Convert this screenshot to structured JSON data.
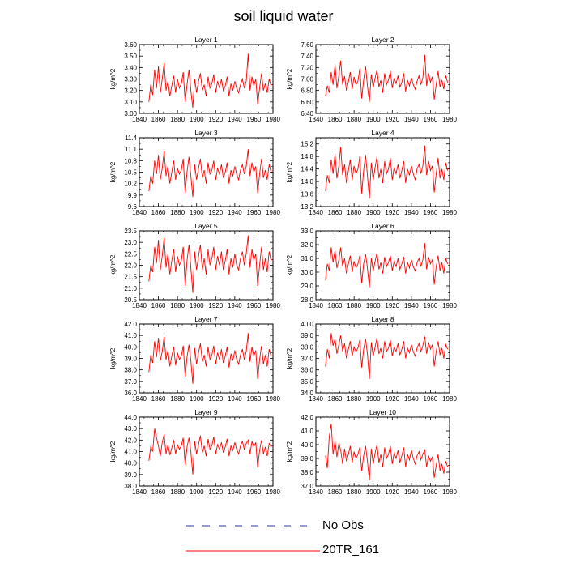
{
  "title": "soil liquid water",
  "legend": [
    {
      "label": "No Obs",
      "style": "dashed",
      "color": "#3030a0"
    },
    {
      "label": "20TR_161",
      "style": "solid",
      "color": "#ff0000"
    }
  ],
  "chart_data": [
    {
      "type": "line",
      "title": "Layer 1",
      "ylabel": "kg/m^2",
      "xlim": [
        1840,
        1980
      ],
      "ylim": [
        3.0,
        3.6
      ],
      "xticks": [
        "1840",
        "1860",
        "1880",
        "1900",
        "1920",
        "1940",
        "1960",
        "1980"
      ],
      "yticks": [
        "3.00",
        "3.10",
        "3.20",
        "3.30",
        "3.40",
        "3.50",
        "3.60"
      ],
      "x_start": 1850,
      "x_step": 2,
      "series": [
        {
          "color": "#ff0000",
          "values": [
            3.1,
            3.25,
            3.16,
            3.38,
            3.22,
            3.41,
            3.18,
            3.3,
            3.44,
            3.2,
            3.28,
            3.15,
            3.24,
            3.33,
            3.18,
            3.3,
            3.22,
            3.26,
            3.36,
            3.1,
            3.25,
            3.38,
            3.2,
            3.05,
            3.3,
            3.18,
            3.28,
            3.35,
            3.2,
            3.25,
            3.15,
            3.32,
            3.22,
            3.26,
            3.34,
            3.18,
            3.28,
            3.22,
            3.3,
            3.2,
            3.24,
            3.32,
            3.15,
            3.26,
            3.2,
            3.28,
            3.22,
            3.18,
            3.25,
            3.3,
            3.22,
            3.28,
            3.52,
            3.2,
            3.32,
            3.24,
            3.3,
            3.08,
            3.22,
            3.35,
            3.2,
            3.26,
            3.18,
            3.3,
            3.24
          ]
        }
      ]
    },
    {
      "type": "line",
      "title": "Layer 2",
      "ylabel": "kg/m^2",
      "xlim": [
        1840,
        1980
      ],
      "ylim": [
        6.4,
        7.6
      ],
      "xticks": [
        "1840",
        "1860",
        "1880",
        "1900",
        "1920",
        "1940",
        "1960",
        "1980"
      ],
      "yticks": [
        "6.40",
        "6.60",
        "6.80",
        "7.00",
        "7.20",
        "7.40",
        "7.60"
      ],
      "x_start": 1850,
      "x_step": 2,
      "series": [
        {
          "color": "#ff0000",
          "values": [
            6.7,
            6.88,
            6.76,
            7.12,
            6.9,
            7.25,
            6.84,
            7.06,
            7.32,
            6.9,
            7.05,
            6.8,
            6.95,
            7.12,
            6.82,
            7.04,
            6.9,
            6.96,
            7.18,
            6.66,
            6.98,
            7.22,
            6.88,
            6.6,
            7.08,
            6.85,
            7.02,
            7.16,
            6.86,
            6.98,
            6.76,
            7.1,
            6.9,
            6.98,
            7.14,
            6.84,
            7.02,
            6.92,
            7.06,
            6.86,
            6.94,
            7.1,
            6.78,
            6.98,
            6.88,
            7.02,
            6.9,
            6.82,
            6.96,
            7.06,
            6.9,
            7.02,
            7.42,
            6.88,
            7.1,
            6.94,
            7.04,
            6.64,
            6.9,
            7.14,
            6.86,
            6.98,
            6.82,
            7.06,
            6.94
          ]
        }
      ]
    },
    {
      "type": "line",
      "title": "Layer 3",
      "ylabel": "kg/m^2",
      "xlim": [
        1840,
        1980
      ],
      "ylim": [
        9.6,
        11.4
      ],
      "xticks": [
        "1840",
        "1860",
        "1880",
        "1900",
        "1920",
        "1940",
        "1960",
        "1980"
      ],
      "yticks": [
        "9.6",
        "9.9",
        "10.2",
        "10.5",
        "10.8",
        "11.1",
        "11.4"
      ],
      "x_start": 1850,
      "x_step": 2,
      "series": [
        {
          "color": "#ff0000",
          "values": [
            10.0,
            10.4,
            10.2,
            10.8,
            10.45,
            10.95,
            10.3,
            10.6,
            11.05,
            10.4,
            10.65,
            10.2,
            10.5,
            10.8,
            10.3,
            10.6,
            10.45,
            10.55,
            10.85,
            9.95,
            10.5,
            10.9,
            10.4,
            9.85,
            10.7,
            10.3,
            10.6,
            10.85,
            10.35,
            10.55,
            10.2,
            10.75,
            10.45,
            10.55,
            10.8,
            10.3,
            10.6,
            10.45,
            10.7,
            10.35,
            10.5,
            10.75,
            10.2,
            10.55,
            10.4,
            10.65,
            10.45,
            10.3,
            10.55,
            10.7,
            10.45,
            10.65,
            11.1,
            10.4,
            10.75,
            10.5,
            10.65,
            9.95,
            10.45,
            10.85,
            10.35,
            10.55,
            10.3,
            10.7,
            10.5
          ]
        }
      ]
    },
    {
      "type": "line",
      "title": "Layer 4",
      "ylabel": "kg/m^2",
      "xlim": [
        1840,
        1980
      ],
      "ylim": [
        13.2,
        15.4
      ],
      "xticks": [
        "1840",
        "1860",
        "1880",
        "1900",
        "1920",
        "1940",
        "1960",
        "1980"
      ],
      "yticks": [
        "13.2",
        "13.6",
        "14.0",
        "14.4",
        "14.8",
        "15.2"
      ],
      "x_start": 1850,
      "x_step": 2,
      "series": [
        {
          "color": "#ff0000",
          "values": [
            13.7,
            14.2,
            13.95,
            14.7,
            14.25,
            14.9,
            14.1,
            14.5,
            15.1,
            14.2,
            14.55,
            13.95,
            14.35,
            14.7,
            14.05,
            14.5,
            14.25,
            14.4,
            14.8,
            13.6,
            14.35,
            14.85,
            14.2,
            13.45,
            14.6,
            14.05,
            14.45,
            14.8,
            14.1,
            14.4,
            13.95,
            14.65,
            14.25,
            14.4,
            14.75,
            14.05,
            14.45,
            14.25,
            14.55,
            14.1,
            14.35,
            14.65,
            13.95,
            14.4,
            14.2,
            14.5,
            14.25,
            14.05,
            14.4,
            14.55,
            14.25,
            14.5,
            15.15,
            14.2,
            14.65,
            14.35,
            14.5,
            13.65,
            14.25,
            14.75,
            14.1,
            14.4,
            14.05,
            14.6,
            14.35
          ]
        }
      ]
    },
    {
      "type": "line",
      "title": "Layer 5",
      "ylabel": "kg/m^2",
      "xlim": [
        1840,
        1980
      ],
      "ylim": [
        20.5,
        23.5
      ],
      "xticks": [
        "1840",
        "1860",
        "1880",
        "1900",
        "1920",
        "1940",
        "1960",
        "1980"
      ],
      "yticks": [
        "20.5",
        "21.0",
        "21.5",
        "22.0",
        "22.5",
        "23.0",
        "23.5"
      ],
      "x_start": 1850,
      "x_step": 2,
      "series": [
        {
          "color": "#ff0000",
          "values": [
            21.3,
            22.0,
            21.7,
            22.8,
            22.1,
            23.1,
            21.8,
            22.4,
            23.2,
            21.9,
            22.5,
            21.6,
            22.2,
            22.7,
            21.7,
            22.4,
            22.0,
            22.2,
            22.8,
            21.1,
            22.2,
            22.9,
            21.9,
            20.8,
            22.6,
            21.8,
            22.4,
            22.9,
            21.8,
            22.3,
            21.6,
            22.7,
            22.0,
            22.3,
            22.8,
            21.8,
            22.4,
            22.0,
            22.6,
            21.8,
            22.2,
            22.7,
            21.6,
            22.3,
            21.9,
            22.5,
            22.0,
            21.8,
            22.3,
            22.6,
            22.0,
            22.5,
            23.3,
            21.9,
            22.7,
            22.2,
            22.5,
            21.1,
            22.0,
            22.8,
            21.8,
            22.3,
            21.7,
            22.6,
            22.2
          ]
        }
      ]
    },
    {
      "type": "line",
      "title": "Layer 6",
      "ylabel": "kg/m^2",
      "xlim": [
        1840,
        1980
      ],
      "ylim": [
        28.0,
        33.0
      ],
      "xticks": [
        "1840",
        "1860",
        "1880",
        "1900",
        "1920",
        "1940",
        "1960",
        "1980"
      ],
      "yticks": [
        "28.0",
        "29.0",
        "30.0",
        "31.0",
        "32.0",
        "33.0"
      ],
      "x_start": 1850,
      "x_step": 2,
      "series": [
        {
          "color": "#ff0000",
          "values": [
            29.4,
            30.6,
            30.1,
            31.8,
            30.7,
            31.6,
            30.3,
            30.9,
            31.8,
            30.4,
            31.0,
            29.9,
            30.6,
            31.2,
            30.0,
            30.8,
            30.3,
            30.6,
            31.2,
            29.2,
            30.6,
            31.3,
            30.3,
            28.9,
            31.0,
            30.1,
            30.8,
            31.4,
            30.2,
            30.7,
            29.9,
            31.1,
            30.4,
            30.7,
            31.2,
            30.1,
            30.8,
            30.4,
            31.0,
            30.2,
            30.6,
            31.1,
            29.9,
            30.7,
            30.3,
            30.9,
            30.4,
            30.1,
            30.7,
            31.0,
            30.4,
            30.9,
            32.1,
            30.2,
            31.1,
            30.6,
            30.9,
            29.1,
            30.4,
            31.2,
            30.1,
            30.7,
            29.9,
            31.0,
            30.6
          ]
        }
      ]
    },
    {
      "type": "line",
      "title": "Layer 7",
      "ylabel": "kg/m^2",
      "xlim": [
        1840,
        1980
      ],
      "ylim": [
        36.0,
        42.0
      ],
      "xticks": [
        "1840",
        "1860",
        "1880",
        "1900",
        "1920",
        "1940",
        "1960",
        "1980"
      ],
      "yticks": [
        "36.0",
        "37.0",
        "38.0",
        "39.0",
        "40.0",
        "41.0",
        "42.0"
      ],
      "x_start": 1850,
      "x_step": 2,
      "series": [
        {
          "color": "#ff0000",
          "values": [
            37.8,
            39.3,
            38.6,
            40.5,
            39.1,
            40.8,
            38.8,
            39.6,
            40.9,
            38.9,
            39.7,
            38.3,
            39.2,
            40.0,
            38.4,
            39.5,
            38.9,
            39.2,
            40.1,
            37.4,
            39.1,
            40.2,
            38.8,
            36.8,
            39.9,
            38.5,
            39.5,
            40.3,
            38.7,
            39.3,
            38.3,
            40.0,
            38.9,
            39.3,
            40.1,
            38.5,
            39.5,
            38.9,
            39.8,
            38.6,
            39.2,
            40.0,
            38.2,
            39.4,
            38.8,
            39.7,
            38.9,
            38.5,
            39.3,
            39.8,
            38.9,
            39.6,
            41.2,
            38.7,
            40.0,
            39.2,
            39.7,
            37.2,
            38.9,
            40.1,
            38.5,
            39.3,
            38.3,
            39.8,
            39.2
          ]
        }
      ]
    },
    {
      "type": "line",
      "title": "Layer 8",
      "ylabel": "kg/m^2",
      "xlim": [
        1840,
        1980
      ],
      "ylim": [
        34.0,
        40.0
      ],
      "xticks": [
        "1840",
        "1860",
        "1880",
        "1900",
        "1920",
        "1940",
        "1960",
        "1980"
      ],
      "yticks": [
        "34.0",
        "35.0",
        "36.0",
        "37.0",
        "38.0",
        "39.0",
        "40.0"
      ],
      "x_start": 1850,
      "x_step": 2,
      "series": [
        {
          "color": "#ff0000",
          "values": [
            36.3,
            37.8,
            37.0,
            39.2,
            38.1,
            38.7,
            37.4,
            38.2,
            39.0,
            37.6,
            38.3,
            37.0,
            37.8,
            38.5,
            37.2,
            38.0,
            37.6,
            37.9,
            38.6,
            36.2,
            37.8,
            38.7,
            37.4,
            35.2,
            38.4,
            37.2,
            38.0,
            38.8,
            37.4,
            37.9,
            37.0,
            38.5,
            37.6,
            37.9,
            38.6,
            37.2,
            38.0,
            37.6,
            38.3,
            37.3,
            37.8,
            38.5,
            37.0,
            37.9,
            37.5,
            38.2,
            37.6,
            37.2,
            37.9,
            38.3,
            37.6,
            38.1,
            38.9,
            37.4,
            38.4,
            37.8,
            38.2,
            36.3,
            37.6,
            38.5,
            37.3,
            37.9,
            37.0,
            38.2,
            37.8
          ]
        }
      ]
    },
    {
      "type": "line",
      "title": "Layer 9",
      "ylabel": "kg/m^2",
      "xlim": [
        1840,
        1980
      ],
      "ylim": [
        38.0,
        44.0
      ],
      "xticks": [
        "1840",
        "1860",
        "1880",
        "1900",
        "1920",
        "1940",
        "1960",
        "1980"
      ],
      "yticks": [
        "38.0",
        "39.0",
        "40.0",
        "41.0",
        "42.0",
        "43.0",
        "44.0"
      ],
      "x_start": 1850,
      "x_step": 2,
      "series": [
        {
          "color": "#ff0000",
          "values": [
            40.2,
            41.4,
            41.0,
            43.0,
            42.2,
            41.5,
            40.6,
            41.8,
            42.5,
            40.8,
            41.6,
            40.7,
            41.3,
            42.0,
            40.8,
            41.6,
            41.2,
            41.5,
            42.2,
            39.8,
            41.4,
            42.2,
            41.0,
            39.0,
            41.9,
            40.8,
            41.6,
            42.4,
            40.9,
            41.5,
            40.6,
            42.1,
            41.2,
            41.5,
            42.3,
            40.8,
            41.6,
            41.2,
            41.8,
            40.9,
            41.4,
            42.1,
            40.6,
            41.5,
            41.1,
            41.8,
            41.2,
            40.8,
            41.5,
            41.9,
            41.2,
            41.7,
            42.0,
            40.8,
            41.9,
            41.4,
            41.8,
            39.6,
            41.1,
            42.0,
            40.8,
            41.4,
            40.6,
            41.7,
            41.4
          ]
        }
      ]
    },
    {
      "type": "line",
      "title": "Layer 10",
      "ylabel": "kg/m^2",
      "xlim": [
        1840,
        1980
      ],
      "ylim": [
        37.0,
        42.0
      ],
      "xticks": [
        "1840",
        "1860",
        "1880",
        "1900",
        "1920",
        "1940",
        "1960",
        "1980"
      ],
      "yticks": [
        "37.0",
        "38.0",
        "39.0",
        "40.0",
        "41.0",
        "42.0"
      ],
      "x_start": 1850,
      "x_step": 2,
      "series": [
        {
          "color": "#ff0000",
          "values": [
            39.2,
            38.3,
            40.6,
            41.5,
            39.3,
            40.3,
            39.1,
            40.1,
            39.6,
            38.6,
            39.7,
            38.8,
            39.3,
            39.9,
            38.7,
            39.5,
            39.0,
            39.3,
            39.8,
            38.1,
            39.2,
            39.9,
            38.8,
            37.4,
            39.7,
            38.6,
            39.4,
            40.0,
            38.7,
            39.3,
            38.4,
            39.8,
            39.0,
            39.3,
            39.9,
            38.6,
            39.4,
            39.0,
            39.6,
            38.7,
            39.2,
            39.8,
            38.4,
            39.3,
            38.9,
            39.6,
            39.0,
            38.6,
            39.2,
            39.5,
            38.9,
            39.3,
            39.6,
            38.4,
            39.2,
            38.8,
            39.1,
            37.6,
            38.5,
            39.3,
            38.1,
            38.6,
            37.9,
            38.8,
            38.4
          ]
        }
      ]
    }
  ]
}
